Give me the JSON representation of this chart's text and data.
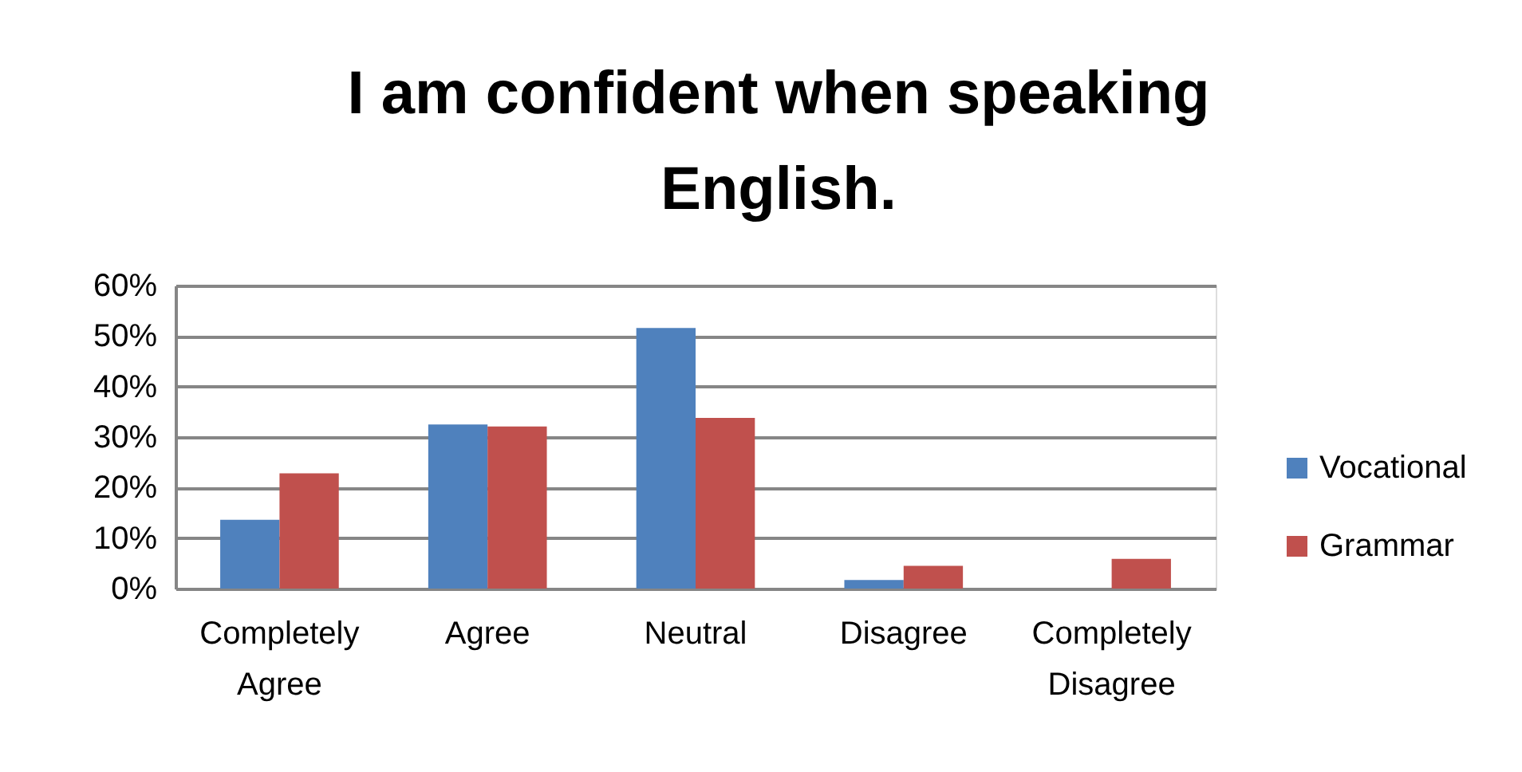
{
  "chart_data": {
    "type": "bar",
    "title": "I am confident when speaking English.",
    "categories": [
      "Completely Agree",
      "Agree",
      "Neutral",
      "Disagree",
      "Completely Disagree"
    ],
    "series": [
      {
        "name": "Vocational",
        "color": "#4f81bd",
        "values": [
          13.6,
          32.5,
          51.6,
          1.7,
          0
        ]
      },
      {
        "name": "Grammar",
        "color": "#c0504d",
        "values": [
          22.8,
          32.1,
          33.8,
          4.5,
          5.9
        ]
      }
    ],
    "ylim": [
      0,
      60
    ],
    "yticks": [
      {
        "value": 0,
        "label": "0%"
      },
      {
        "value": 10,
        "label": "10%"
      },
      {
        "value": 20,
        "label": "20%"
      },
      {
        "value": 30,
        "label": "30%"
      },
      {
        "value": 40,
        "label": "40%"
      },
      {
        "value": 50,
        "label": "50%"
      },
      {
        "value": 60,
        "label": "60%"
      }
    ],
    "grid": "y",
    "legend": "right"
  }
}
